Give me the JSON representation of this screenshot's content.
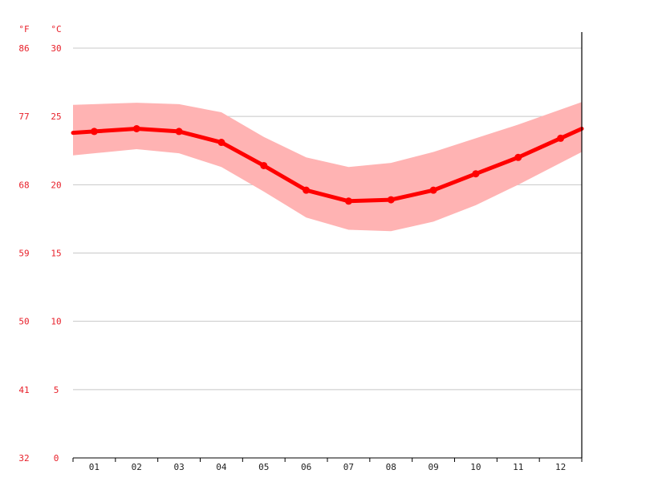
{
  "chart_data": {
    "type": "line",
    "title": "",
    "xlabel": "",
    "ylabel": "",
    "unit_f": "°F",
    "unit_c": "°C",
    "categories": [
      "01",
      "02",
      "03",
      "04",
      "05",
      "06",
      "07",
      "08",
      "09",
      "10",
      "11",
      "12"
    ],
    "y_ticks_c": [
      "0",
      "5",
      "10",
      "15",
      "20",
      "25",
      "30"
    ],
    "y_ticks_f": [
      "32",
      "41",
      "50",
      "59",
      "68",
      "77",
      "86"
    ],
    "ylim": [
      0,
      30
    ],
    "grid": true,
    "series": [
      {
        "type": "line",
        "values": [
          23.9,
          24.1,
          23.9,
          23.1,
          21.4,
          19.6,
          18.8,
          18.9,
          19.6,
          20.8,
          22.0,
          23.4
        ]
      },
      {
        "type": "band",
        "upper": [
          25.9,
          26.0,
          25.9,
          25.3,
          23.5,
          22.0,
          21.3,
          21.6,
          22.4,
          23.4,
          24.4,
          25.5
        ],
        "lower": [
          22.3,
          22.6,
          22.3,
          21.3,
          19.5,
          17.6,
          16.7,
          16.6,
          17.3,
          18.5,
          20.0,
          21.6
        ]
      }
    ],
    "colors": {
      "line": "#ff0000",
      "band": "#ffb3b3",
      "tick_text": "#e8202a",
      "axis": "#000000",
      "grid": "#c8c8c8"
    }
  }
}
